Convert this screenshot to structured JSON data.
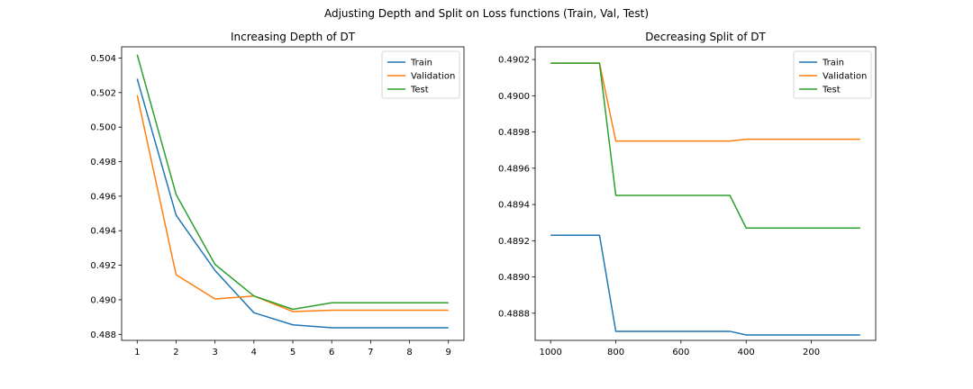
{
  "figure": {
    "suptitle": "Adjusting Depth and Split on Loss functions (Train, Val, Test)"
  },
  "chart_data": [
    {
      "type": "line",
      "title": "Increasing Depth of DT",
      "xlabel": "",
      "ylabel": "",
      "x": [
        1,
        2,
        3,
        4,
        5,
        6,
        7,
        8,
        9
      ],
      "xlim": [
        0.6,
        9.4
      ],
      "ylim": [
        0.48765,
        0.50465
      ],
      "x_ticks": [
        1,
        2,
        3,
        4,
        5,
        6,
        7,
        8,
        9
      ],
      "y_ticks": [
        0.488,
        0.49,
        0.492,
        0.494,
        0.496,
        0.498,
        0.5,
        0.502,
        0.504
      ],
      "y_tick_decimals": 3,
      "x_inverted": false,
      "grid": false,
      "legend_position": "top-right",
      "series": [
        {
          "name": "Train",
          "color": "#1f77b4",
          "values": [
            0.5028,
            0.4949,
            0.4917,
            0.48925,
            0.48855,
            0.48838,
            0.48838,
            0.48838,
            0.48838
          ]
        },
        {
          "name": "Validation",
          "color": "#ff7f0e",
          "values": [
            0.50185,
            0.49145,
            0.49005,
            0.49022,
            0.48932,
            0.4894,
            0.4894,
            0.4894,
            0.4894
          ]
        },
        {
          "name": "Test",
          "color": "#2ca02c",
          "values": [
            0.5042,
            0.4961,
            0.49205,
            0.49022,
            0.48945,
            0.48983,
            0.48983,
            0.48983,
            0.48983
          ]
        }
      ]
    },
    {
      "type": "line",
      "title": "Decreasing Split of DT",
      "xlabel": "",
      "ylabel": "",
      "x": [
        1000,
        850,
        800,
        450,
        400,
        50
      ],
      "xlim": [
        1047.5,
        2.5
      ],
      "ylim": [
        0.48865,
        0.49027
      ],
      "x_ticks": [
        1000,
        800,
        600,
        400,
        200
      ],
      "y_ticks": [
        0.4888,
        0.489,
        0.4892,
        0.4894,
        0.4896,
        0.4898,
        0.49,
        0.4902
      ],
      "y_tick_decimals": 4,
      "x_inverted": true,
      "grid": false,
      "legend_position": "top-right",
      "series": [
        {
          "name": "Train",
          "color": "#1f77b4",
          "values": [
            0.48923,
            0.48923,
            0.4887,
            0.4887,
            0.48868,
            0.48868
          ]
        },
        {
          "name": "Validation",
          "color": "#ff7f0e",
          "values": [
            0.49018,
            0.49018,
            0.48975,
            0.48975,
            0.48976,
            0.48976
          ]
        },
        {
          "name": "Test",
          "color": "#2ca02c",
          "values": [
            0.49018,
            0.49018,
            0.48945,
            0.48945,
            0.48927,
            0.48927
          ]
        }
      ]
    }
  ]
}
